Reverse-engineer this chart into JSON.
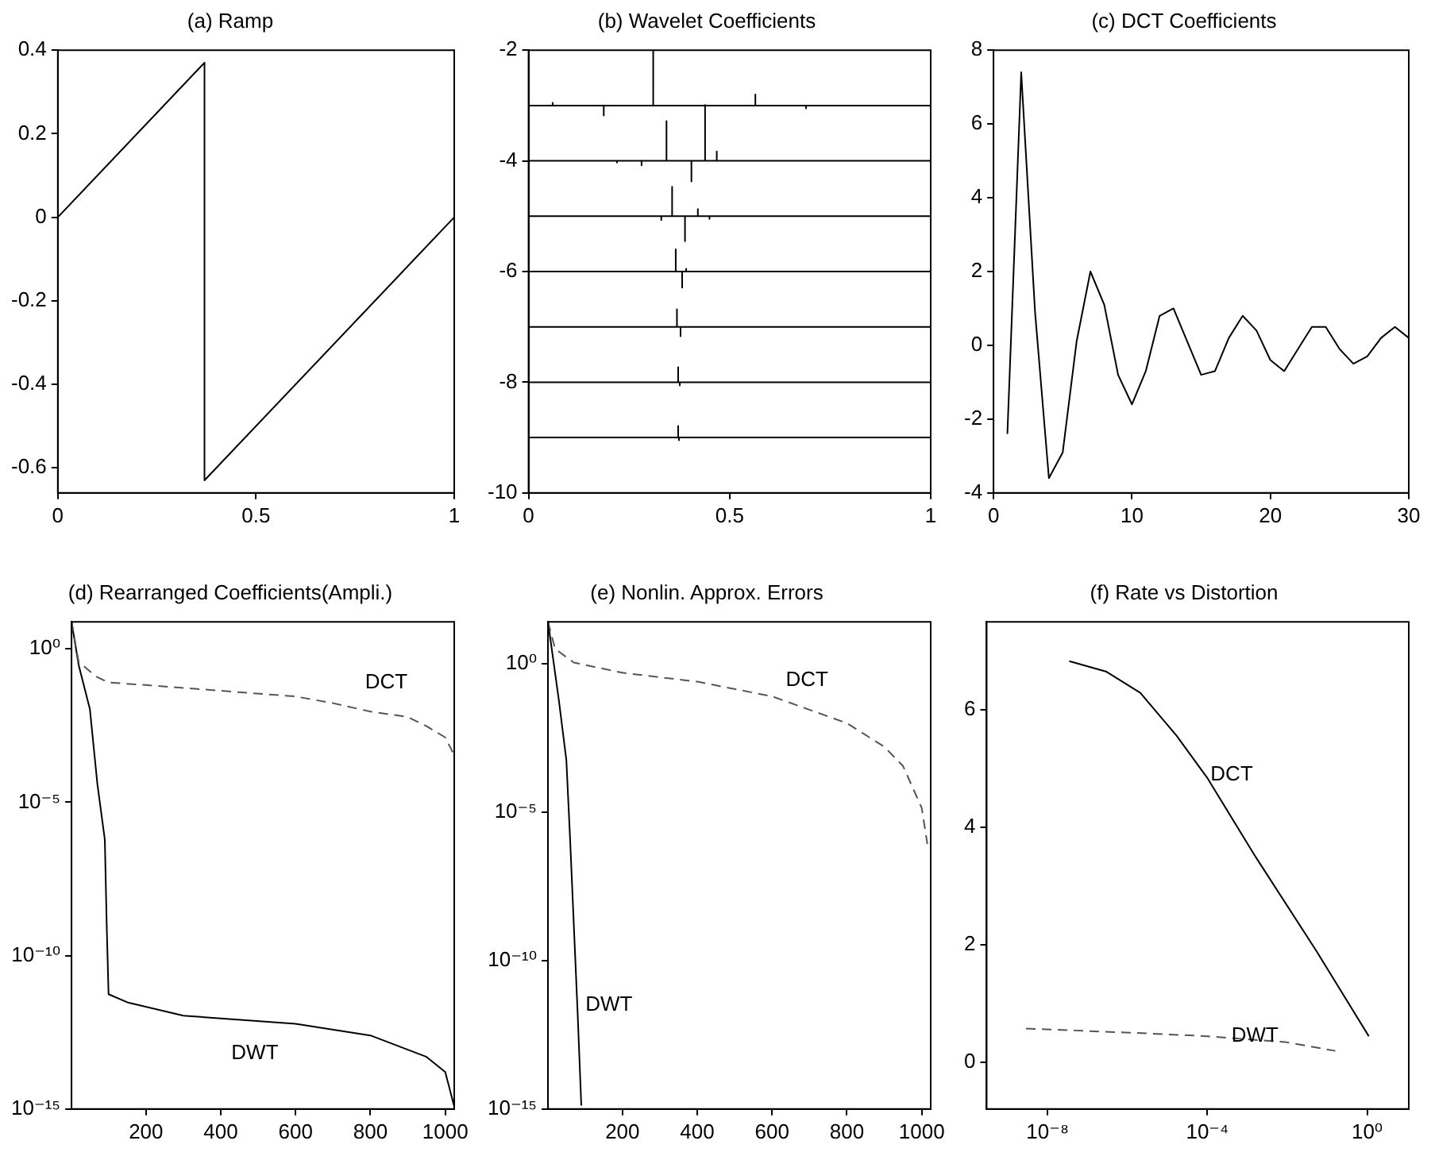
{
  "chart_data": [
    {
      "type": "line",
      "title": "(a) Ramp",
      "xlim": [
        0,
        1
      ],
      "xticks": [
        0,
        0.5,
        1
      ],
      "ylim": [
        -0.66,
        0.4
      ],
      "yticks": [
        -0.6,
        -0.4,
        -0.2,
        0,
        0.2,
        0.4
      ],
      "series": [
        {
          "color": "#000000",
          "x": [
            0,
            0.37,
            0.37,
            1
          ],
          "values": [
            0,
            0.37,
            -0.63,
            0
          ]
        }
      ]
    },
    {
      "type": "line",
      "title": "(b) Wavelet Coefficients",
      "xlim": [
        0,
        1
      ],
      "xticks": [
        0,
        0.5,
        1
      ],
      "ylim": [
        -10,
        -2
      ],
      "yticks": [
        -10,
        -8,
        -6,
        -4,
        -2
      ],
      "series": [
        {
          "color": "#000000",
          "x": [
            0,
            0.06,
            0.06,
            0.06,
            0.187,
            0.187,
            0.187,
            0.31,
            0.31,
            0.31,
            0.564,
            0.564,
            0.564,
            0.69,
            0.69,
            0.69,
            1
          ],
          "values": [
            -3,
            -3,
            -2.95,
            -3,
            -3,
            -3.18,
            -3,
            -3,
            -2,
            -3,
            -3,
            -2.8,
            -3,
            -3,
            -3.05,
            -3,
            -3
          ]
        },
        {
          "color": "#000000",
          "x": [
            0,
            0.22,
            0.22,
            0.22,
            0.281,
            0.281,
            0.281,
            0.343,
            0.343,
            0.343,
            0.405,
            0.405,
            0.405,
            0.439,
            0.439,
            0.439,
            0.468,
            0.468,
            0.468,
            1
          ],
          "values": [
            -4,
            -4,
            -4.03,
            -4,
            -4,
            -4.08,
            -4,
            -4,
            -3.28,
            -4,
            -4,
            -4.37,
            -4,
            -4,
            -2.99,
            -4,
            -4,
            -3.83,
            -4,
            -4
          ]
        },
        {
          "color": "#000000",
          "x": [
            0,
            0.33,
            0.33,
            0.33,
            0.357,
            0.357,
            0.357,
            0.389,
            0.389,
            0.389,
            0.421,
            0.421,
            0.421,
            0.45,
            0.45,
            0.45,
            1
          ],
          "values": [
            -5,
            -5,
            -5.07,
            -5,
            -5,
            -4.47,
            -5,
            -5,
            -5.45,
            -5,
            -5,
            -4.87,
            -5,
            -5,
            -5.05,
            -5,
            -5
          ]
        },
        {
          "color": "#000000",
          "x": [
            0,
            0.366,
            0.366,
            0.366,
            0.382,
            0.382,
            0.382,
            0.392,
            0.392,
            0.392,
            1
          ],
          "values": [
            -6,
            -6,
            -5.6,
            -6,
            -6,
            -6.29,
            -6,
            -6,
            -5.95,
            -6,
            -6
          ]
        },
        {
          "color": "#000000",
          "x": [
            0,
            0.369,
            0.369,
            0.369,
            0.378,
            0.378,
            0.378,
            1
          ],
          "values": [
            -7,
            -7,
            -6.68,
            -7,
            -7,
            -7.17,
            -7,
            -7
          ]
        },
        {
          "color": "#000000",
          "x": [
            0,
            0.372,
            0.372,
            0.372,
            0.376,
            0.376,
            0.376,
            1
          ],
          "values": [
            -8,
            -8,
            -7.73,
            -8,
            -8,
            -8.06,
            -8,
            -8
          ]
        },
        {
          "color": "#000000",
          "x": [
            0,
            0.372,
            0.372,
            0.372,
            0.374,
            0.374,
            0.374,
            1
          ],
          "values": [
            -9,
            -9,
            -8.79,
            -9,
            -9,
            -9.05,
            -9,
            -9
          ]
        }
      ]
    },
    {
      "type": "line",
      "title": "(c) DCT Coefficients",
      "xlim": [
        0,
        30
      ],
      "xticks": [
        0,
        10,
        20,
        30
      ],
      "ylim": [
        -4,
        8
      ],
      "yticks": [
        -4,
        -2,
        0,
        2,
        4,
        6,
        8
      ],
      "x": [
        1,
        2,
        3,
        4,
        5,
        6,
        7,
        8,
        9,
        10,
        11,
        12,
        13,
        14,
        15,
        16,
        17,
        18,
        19,
        20,
        21,
        22,
        23,
        24,
        25,
        26,
        27,
        28,
        29,
        30
      ],
      "series": [
        {
          "color": "#000000",
          "values": [
            -2.4,
            7.4,
            0.9,
            -3.6,
            -2.9,
            0.1,
            2.0,
            1.1,
            -0.8,
            -1.6,
            -0.7,
            0.8,
            1.0,
            0.1,
            -0.8,
            -0.7,
            0.2,
            0.8,
            0.4,
            -0.4,
            -0.7,
            -0.1,
            0.5,
            0.5,
            -0.1,
            -0.5,
            -0.3,
            0.2,
            0.5,
            0.2
          ]
        }
      ]
    },
    {
      "type": "line",
      "title": "(d) Rearranged Coefficients(Ampli.)",
      "log": "y",
      "xlim": [
        1,
        1024
      ],
      "xticks": [
        200,
        400,
        600,
        800,
        1000
      ],
      "ylim": [
        1e-15,
        7.6
      ],
      "yticks": [
        {
          "value": 1e-15,
          "label": "10⁻¹⁵"
        },
        {
          "value": 1e-10,
          "label": "10⁻¹⁰"
        },
        {
          "value": 1e-05,
          "label": "10⁻⁵"
        },
        {
          "value": 1,
          "label": "10⁰"
        }
      ],
      "series": [
        {
          "name": "DCT",
          "color": "#555555",
          "line_style": "dashed",
          "x": [
            1,
            20,
            66,
            100,
            200,
            400,
            600,
            700,
            800,
            900,
            950,
            1000,
            1024
          ],
          "values": [
            7.6,
            0.38,
            0.126,
            0.08,
            0.066,
            0.043,
            0.028,
            0.017,
            0.009,
            0.006,
            0.003,
            0.0013,
            0.00034
          ]
        },
        {
          "name": "DWT",
          "color": "#000000",
          "line_style": "solid",
          "x": [
            1,
            20,
            50,
            70,
            90,
            95,
            100,
            150,
            300,
            600,
            800,
            950,
            1000,
            1024
          ],
          "values": [
            7.6,
            0.3,
            0.011,
            4e-05,
            6e-07,
            1e-09,
            5.5e-12,
            3e-12,
            1.1e-12,
            6e-13,
            2.5e-13,
            5e-14,
            1.6e-14,
            1.2e-15
          ]
        }
      ]
    },
    {
      "type": "line",
      "title": "(e) Nonlin. Approx. Errors",
      "log": "y",
      "xlim": [
        1,
        1024
      ],
      "xticks": [
        200,
        400,
        600,
        800,
        1000
      ],
      "ylim": [
        1e-15,
        26
      ],
      "yticks": [
        {
          "value": 1e-15,
          "label": "10⁻¹⁵"
        },
        {
          "value": 1e-10,
          "label": "10⁻¹⁰"
        },
        {
          "value": 1e-05,
          "label": "10⁻⁵"
        },
        {
          "value": 1,
          "label": "10⁰"
        }
      ],
      "series": [
        {
          "name": "DCT",
          "color": "#555555",
          "line_style": "dashed",
          "x": [
            1,
            20,
            70,
            200,
            400,
            600,
            800,
            900,
            950,
            1000,
            1015
          ],
          "values": [
            26,
            3.2,
            1.1,
            0.5,
            0.25,
            0.08,
            0.01,
            0.0016,
            0.00036,
            1.4e-05,
            8.5e-07
          ]
        },
        {
          "name": "DWT",
          "color": "#000000",
          "line_style": "solid",
          "x": [
            1,
            30,
            50,
            60,
            80,
            90
          ],
          "values": [
            26,
            0.06,
            0.00058,
            1.3e-06,
            2e-12,
            1.3e-15
          ]
        }
      ]
    },
    {
      "type": "line",
      "title": "(f) Rate vs Distortion",
      "log": "x",
      "xlim": [
        3e-10,
        11
      ],
      "xticks": [
        {
          "value": 1e-08,
          "label": "10⁻⁸"
        },
        {
          "value": 0.0001,
          "label": "10⁻⁴"
        },
        {
          "value": 1,
          "label": "10⁰"
        }
      ],
      "ylim": [
        -0.8,
        7.5
      ],
      "yticks": [
        0,
        2,
        4,
        6
      ],
      "series": [
        {
          "name": "DCT",
          "color": "#000000",
          "line_style": "solid",
          "x": [
            3.5e-08,
            3e-07,
            2.1e-06,
            1.7e-05,
            0.0001,
            0.0016,
            0.054,
            1.1
          ],
          "values": [
            6.83,
            6.65,
            6.29,
            5.56,
            4.84,
            3.5,
            1.89,
            0.44
          ]
        },
        {
          "name": "DWT",
          "color": "#555555",
          "line_style": "dashed",
          "x": [
            2.9e-09,
            1.2e-06,
            0.0001,
            0.009,
            0.16
          ],
          "values": [
            0.57,
            0.5,
            0.44,
            0.34,
            0.19
          ]
        }
      ]
    }
  ]
}
